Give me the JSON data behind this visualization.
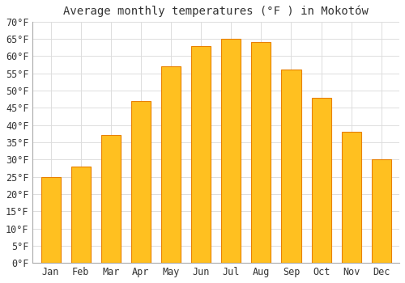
{
  "title": "Average monthly temperatures (°F ) in Mokotów",
  "months": [
    "Jan",
    "Feb",
    "Mar",
    "Apr",
    "May",
    "Jun",
    "Jul",
    "Aug",
    "Sep",
    "Oct",
    "Nov",
    "Dec"
  ],
  "values": [
    25,
    28,
    37,
    47,
    57,
    63,
    65,
    64,
    56,
    48,
    38,
    30
  ],
  "bar_color_inner": "#FFC020",
  "bar_color_outer": "#E88000",
  "background_color": "#FFFFFF",
  "grid_color": "#DDDDDD",
  "text_color": "#333333",
  "spine_color": "#AAAAAA",
  "ylim": [
    0,
    70
  ],
  "ytick_step": 5,
  "title_fontsize": 10,
  "tick_fontsize": 8.5,
  "font_family": "monospace"
}
